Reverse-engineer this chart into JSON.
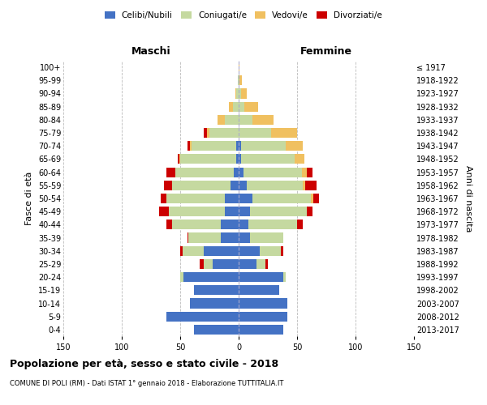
{
  "age_groups": [
    "0-4",
    "5-9",
    "10-14",
    "15-19",
    "20-24",
    "25-29",
    "30-34",
    "35-39",
    "40-44",
    "45-49",
    "50-54",
    "55-59",
    "60-64",
    "65-69",
    "70-74",
    "75-79",
    "80-84",
    "85-89",
    "90-94",
    "95-99",
    "100+"
  ],
  "birth_years": [
    "2013-2017",
    "2008-2012",
    "2003-2007",
    "1998-2002",
    "1993-1997",
    "1988-1992",
    "1983-1987",
    "1978-1982",
    "1973-1977",
    "1968-1972",
    "1963-1967",
    "1958-1962",
    "1953-1957",
    "1948-1952",
    "1943-1947",
    "1938-1942",
    "1933-1937",
    "1928-1932",
    "1923-1927",
    "1918-1922",
    "≤ 1917"
  ],
  "maschi_celibi": [
    38,
    62,
    42,
    38,
    47,
    22,
    30,
    15,
    15,
    12,
    12,
    7,
    4,
    2,
    2,
    0,
    0,
    0,
    0,
    0,
    0
  ],
  "maschi_coniugati": [
    0,
    0,
    0,
    0,
    3,
    8,
    18,
    28,
    42,
    48,
    50,
    50,
    50,
    48,
    38,
    25,
    12,
    5,
    2,
    1,
    0
  ],
  "maschi_vedovi": [
    0,
    0,
    0,
    0,
    0,
    0,
    0,
    0,
    0,
    0,
    0,
    0,
    0,
    1,
    2,
    2,
    6,
    3,
    1,
    0,
    0
  ],
  "maschi_divorziati": [
    0,
    0,
    0,
    0,
    0,
    3,
    2,
    1,
    5,
    8,
    5,
    7,
    8,
    1,
    2,
    3,
    0,
    0,
    0,
    0,
    0
  ],
  "femmine_celibi": [
    38,
    42,
    42,
    35,
    38,
    15,
    18,
    10,
    8,
    10,
    12,
    7,
    4,
    2,
    2,
    0,
    0,
    0,
    0,
    0,
    0
  ],
  "femmine_coniugati": [
    0,
    0,
    0,
    0,
    2,
    8,
    18,
    28,
    42,
    48,
    50,
    48,
    50,
    46,
    38,
    28,
    12,
    5,
    2,
    1,
    0
  ],
  "femmine_vedovi": [
    0,
    0,
    0,
    0,
    0,
    0,
    0,
    0,
    0,
    0,
    2,
    2,
    4,
    8,
    15,
    22,
    18,
    12,
    5,
    2,
    1
  ],
  "femmine_divorziati": [
    0,
    0,
    0,
    0,
    0,
    2,
    2,
    0,
    5,
    5,
    5,
    10,
    5,
    0,
    0,
    0,
    0,
    0,
    0,
    0,
    0
  ],
  "color_celibi": "#4472c4",
  "color_coniugati": "#c5d9a0",
  "color_vedovi": "#f0c060",
  "color_divorziati": "#cc0000",
  "title": "Popolazione per età, sesso e stato civile - 2018",
  "subtitle": "COMUNE DI POLI (RM) - Dati ISTAT 1° gennaio 2018 - Elaborazione TUTTITALIA.IT",
  "ylabel_left": "Fasce di età",
  "ylabel_right": "Anni di nascita",
  "label_maschi": "Maschi",
  "label_femmine": "Femmine",
  "xlim": 150,
  "bg_color": "#ffffff",
  "grid_color": "#bbbbbb",
  "legend_labels": [
    "Celibi/Nubili",
    "Coniugati/e",
    "Vedovi/e",
    "Divorziati/e"
  ]
}
